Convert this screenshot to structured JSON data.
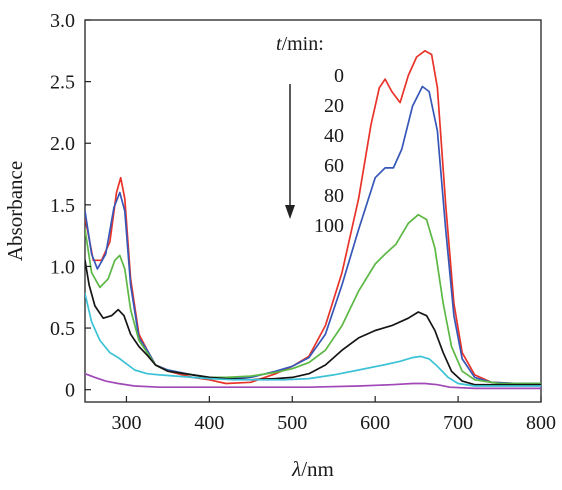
{
  "chart_data": {
    "type": "line",
    "xlabel_italic": "λ",
    "xlabel_unit": "/nm",
    "ylabel": "Absorbance",
    "xlim": [
      250,
      800
    ],
    "ylim": [
      -0.1,
      3.0
    ],
    "x_ticks": [
      300,
      400,
      500,
      600,
      700,
      800
    ],
    "x_tick_labels": [
      "300",
      "400",
      "500",
      "600",
      "700",
      "800"
    ],
    "y_ticks": [
      0,
      0.5,
      1.0,
      1.5,
      2.0,
      2.5,
      3.0
    ],
    "y_tick_labels": [
      "0",
      "0.5",
      "1.0",
      "1.5",
      "2.0",
      "2.5",
      "3.0"
    ],
    "legend_title_italic": "t",
    "legend_title_unit": "/min:",
    "legend_placement": "top-center",
    "legend_arrow": "down",
    "series": [
      {
        "name": "0",
        "color": "#e8332a",
        "points": [
          [
            250,
            1.4
          ],
          [
            260,
            1.05
          ],
          [
            270,
            1.05
          ],
          [
            280,
            1.2
          ],
          [
            288,
            1.6
          ],
          [
            293,
            1.72
          ],
          [
            298,
            1.55
          ],
          [
            305,
            0.9
          ],
          [
            315,
            0.45
          ],
          [
            325,
            0.32
          ],
          [
            335,
            0.2
          ],
          [
            350,
            0.15
          ],
          [
            380,
            0.1
          ],
          [
            400,
            0.08
          ],
          [
            420,
            0.05
          ],
          [
            450,
            0.06
          ],
          [
            480,
            0.13
          ],
          [
            500,
            0.19
          ],
          [
            520,
            0.27
          ],
          [
            540,
            0.52
          ],
          [
            560,
            0.95
          ],
          [
            580,
            1.55
          ],
          [
            595,
            2.15
          ],
          [
            605,
            2.45
          ],
          [
            612,
            2.52
          ],
          [
            620,
            2.42
          ],
          [
            630,
            2.33
          ],
          [
            640,
            2.55
          ],
          [
            650,
            2.7
          ],
          [
            660,
            2.75
          ],
          [
            668,
            2.72
          ],
          [
            675,
            2.45
          ],
          [
            685,
            1.5
          ],
          [
            695,
            0.7
          ],
          [
            705,
            0.3
          ],
          [
            720,
            0.12
          ],
          [
            740,
            0.06
          ],
          [
            770,
            0.05
          ],
          [
            800,
            0.05
          ]
        ]
      },
      {
        "name": "20",
        "color": "#3657b8",
        "points": [
          [
            250,
            1.45
          ],
          [
            258,
            1.1
          ],
          [
            265,
            0.98
          ],
          [
            275,
            1.1
          ],
          [
            285,
            1.48
          ],
          [
            292,
            1.6
          ],
          [
            298,
            1.45
          ],
          [
            305,
            0.85
          ],
          [
            315,
            0.42
          ],
          [
            325,
            0.32
          ],
          [
            335,
            0.2
          ],
          [
            350,
            0.16
          ],
          [
            380,
            0.12
          ],
          [
            400,
            0.1
          ],
          [
            420,
            0.09
          ],
          [
            450,
            0.1
          ],
          [
            480,
            0.15
          ],
          [
            500,
            0.19
          ],
          [
            520,
            0.26
          ],
          [
            540,
            0.45
          ],
          [
            560,
            0.85
          ],
          [
            580,
            1.3
          ],
          [
            600,
            1.72
          ],
          [
            612,
            1.8
          ],
          [
            622,
            1.8
          ],
          [
            632,
            1.95
          ],
          [
            645,
            2.3
          ],
          [
            657,
            2.46
          ],
          [
            665,
            2.42
          ],
          [
            675,
            2.1
          ],
          [
            685,
            1.3
          ],
          [
            695,
            0.6
          ],
          [
            705,
            0.25
          ],
          [
            720,
            0.1
          ],
          [
            740,
            0.06
          ],
          [
            770,
            0.05
          ],
          [
            800,
            0.05
          ]
        ]
      },
      {
        "name": "40",
        "color": "#5cb844",
        "points": [
          [
            250,
            1.3
          ],
          [
            258,
            0.95
          ],
          [
            268,
            0.83
          ],
          [
            278,
            0.9
          ],
          [
            286,
            1.05
          ],
          [
            292,
            1.09
          ],
          [
            298,
            0.98
          ],
          [
            305,
            0.65
          ],
          [
            315,
            0.4
          ],
          [
            325,
            0.3
          ],
          [
            335,
            0.2
          ],
          [
            350,
            0.15
          ],
          [
            380,
            0.12
          ],
          [
            400,
            0.1
          ],
          [
            420,
            0.1
          ],
          [
            450,
            0.11
          ],
          [
            480,
            0.14
          ],
          [
            500,
            0.17
          ],
          [
            520,
            0.22
          ],
          [
            540,
            0.32
          ],
          [
            560,
            0.52
          ],
          [
            580,
            0.8
          ],
          [
            600,
            1.02
          ],
          [
            612,
            1.1
          ],
          [
            625,
            1.18
          ],
          [
            640,
            1.35
          ],
          [
            652,
            1.42
          ],
          [
            662,
            1.38
          ],
          [
            672,
            1.15
          ],
          [
            682,
            0.7
          ],
          [
            692,
            0.35
          ],
          [
            705,
            0.15
          ],
          [
            720,
            0.08
          ],
          [
            750,
            0.05
          ],
          [
            800,
            0.05
          ]
        ]
      },
      {
        "name": "60",
        "color": "#151515",
        "points": [
          [
            250,
            1.05
          ],
          [
            255,
            0.85
          ],
          [
            262,
            0.68
          ],
          [
            272,
            0.58
          ],
          [
            282,
            0.6
          ],
          [
            290,
            0.65
          ],
          [
            297,
            0.6
          ],
          [
            305,
            0.45
          ],
          [
            315,
            0.35
          ],
          [
            325,
            0.28
          ],
          [
            335,
            0.2
          ],
          [
            350,
            0.15
          ],
          [
            380,
            0.12
          ],
          [
            400,
            0.1
          ],
          [
            420,
            0.09
          ],
          [
            450,
            0.08
          ],
          [
            480,
            0.09
          ],
          [
            500,
            0.1
          ],
          [
            520,
            0.13
          ],
          [
            540,
            0.2
          ],
          [
            560,
            0.32
          ],
          [
            580,
            0.42
          ],
          [
            600,
            0.48
          ],
          [
            620,
            0.52
          ],
          [
            640,
            0.58
          ],
          [
            652,
            0.63
          ],
          [
            662,
            0.6
          ],
          [
            672,
            0.48
          ],
          [
            682,
            0.3
          ],
          [
            692,
            0.15
          ],
          [
            705,
            0.07
          ],
          [
            720,
            0.04
          ],
          [
            750,
            0.04
          ],
          [
            800,
            0.04
          ]
        ]
      },
      {
        "name": "80",
        "color": "#3cc2d6",
        "points": [
          [
            250,
            0.78
          ],
          [
            258,
            0.55
          ],
          [
            268,
            0.4
          ],
          [
            280,
            0.3
          ],
          [
            290,
            0.26
          ],
          [
            298,
            0.22
          ],
          [
            310,
            0.16
          ],
          [
            325,
            0.13
          ],
          [
            340,
            0.12
          ],
          [
            360,
            0.11
          ],
          [
            380,
            0.1
          ],
          [
            400,
            0.09
          ],
          [
            430,
            0.08
          ],
          [
            460,
            0.08
          ],
          [
            490,
            0.08
          ],
          [
            520,
            0.09
          ],
          [
            550,
            0.12
          ],
          [
            580,
            0.16
          ],
          [
            610,
            0.2
          ],
          [
            630,
            0.23
          ],
          [
            645,
            0.26
          ],
          [
            655,
            0.27
          ],
          [
            665,
            0.25
          ],
          [
            675,
            0.19
          ],
          [
            688,
            0.1
          ],
          [
            700,
            0.05
          ],
          [
            720,
            0.03
          ],
          [
            760,
            0.03
          ],
          [
            800,
            0.03
          ]
        ]
      },
      {
        "name": "100",
        "color": "#a048b8",
        "points": [
          [
            250,
            0.13
          ],
          [
            262,
            0.1
          ],
          [
            275,
            0.07
          ],
          [
            290,
            0.05
          ],
          [
            310,
            0.03
          ],
          [
            340,
            0.02
          ],
          [
            380,
            0.02
          ],
          [
            450,
            0.02
          ],
          [
            520,
            0.02
          ],
          [
            580,
            0.03
          ],
          [
            620,
            0.04
          ],
          [
            645,
            0.05
          ],
          [
            660,
            0.05
          ],
          [
            675,
            0.04
          ],
          [
            690,
            0.02
          ],
          [
            720,
            0.01
          ],
          [
            800,
            0.01
          ]
        ]
      }
    ]
  }
}
